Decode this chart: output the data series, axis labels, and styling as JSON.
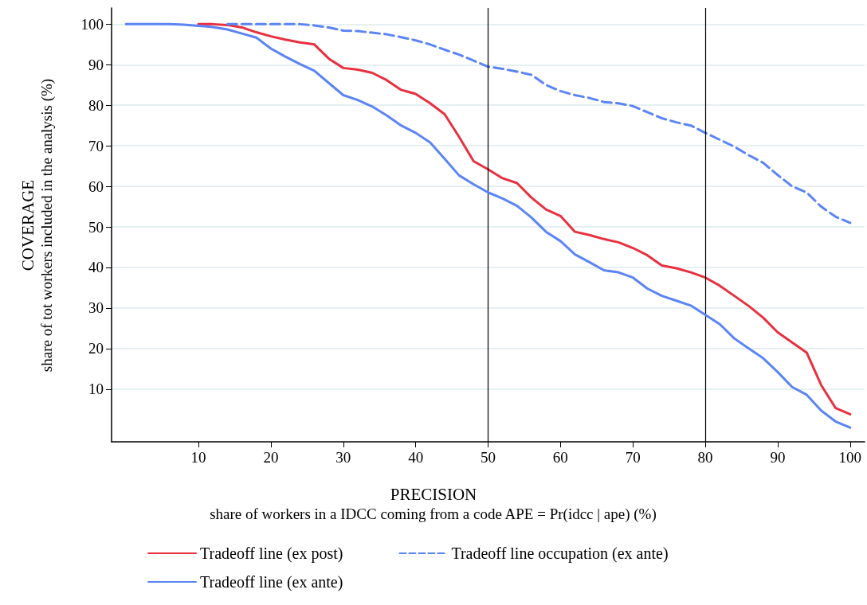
{
  "chart_data": {
    "type": "line",
    "xlabel": "PRECISION\nshare of workers in a IDCC coming from a code APE = Pr(idcc | ape) (%)",
    "ylabel": "COVERAGE\nshare of tot workers included in the analysis (%)",
    "x": [
      0,
      2,
      4,
      6,
      8,
      10,
      12,
      14,
      16,
      18,
      20,
      22,
      24,
      26,
      28,
      30,
      32,
      34,
      36,
      38,
      40,
      42,
      44,
      46,
      48,
      50,
      52,
      54,
      56,
      58,
      60,
      62,
      64,
      66,
      68,
      70,
      72,
      74,
      76,
      78,
      80,
      82,
      84,
      86,
      88,
      90,
      92,
      94,
      96,
      98,
      100
    ],
    "xlim": [
      -2,
      102
    ],
    "ylim": [
      -3,
      104
    ],
    "xticks": [
      10,
      20,
      30,
      40,
      50,
      60,
      70,
      80,
      90,
      100
    ],
    "yticks": [
      10,
      20,
      30,
      40,
      50,
      60,
      70,
      80,
      90,
      100
    ],
    "grid": "y",
    "legend": "bottom",
    "marker": "none",
    "ref_lines": [
      {
        "axis": "x",
        "value": 50,
        "color": "#000000"
      },
      {
        "axis": "x",
        "value": 80,
        "color": "#000000"
      }
    ],
    "series": [
      {
        "name": "Tradeoff line (ex post)",
        "color": "#e8303f",
        "line_style": "solid",
        "values": [
          null,
          null,
          null,
          null,
          null,
          100,
          100,
          99.8,
          99.2,
          98,
          97,
          96.2,
          95.5,
          95,
          91.5,
          89.2,
          88.8,
          88,
          86.2,
          83.8,
          82.8,
          80.5,
          77.8,
          72.2,
          66.2,
          64.2,
          62,
          60.8,
          57.2,
          54.3,
          52.7,
          48.8,
          48,
          47,
          46.2,
          44.8,
          43,
          40.5,
          39.8,
          38.8,
          37.5,
          35.5,
          33,
          30.5,
          27.6,
          24,
          21.5,
          19,
          11,
          5.3,
          3.8
        ]
      },
      {
        "name": "Tradeoff line occupation (ex ante)",
        "color": "#5b84f5",
        "line_style": "dashed",
        "values": [
          null,
          null,
          null,
          null,
          null,
          null,
          null,
          100,
          100,
          100,
          100,
          100,
          100,
          99.7,
          99.2,
          98.4,
          98.3,
          97.9,
          97.5,
          96.8,
          96,
          95,
          93.7,
          92.5,
          91,
          89.5,
          89,
          88.3,
          87.5,
          85,
          83.5,
          82.5,
          81.8,
          80.8,
          80.5,
          79.8,
          78.3,
          76.8,
          75.8,
          75,
          73.2,
          71.5,
          69.8,
          67.7,
          65.8,
          62.8,
          60,
          58.5,
          55,
          52.5,
          51
        ]
      },
      {
        "name": "Tradeoff line (ex ante)",
        "color": "#5b84f5",
        "line_style": "solid",
        "values": [
          100,
          100,
          100,
          100,
          99.9,
          99.6,
          99.3,
          98.7,
          97.7,
          96.7,
          94,
          92,
          90.2,
          88.5,
          85.5,
          82.5,
          81.3,
          79.7,
          77.5,
          75,
          73.2,
          70.8,
          66.8,
          62.7,
          60.5,
          58.5,
          57,
          55.2,
          52.3,
          48.8,
          46.5,
          43.2,
          41.3,
          39.3,
          38.8,
          37.5,
          34.8,
          33,
          31.8,
          30.6,
          28.3,
          26,
          22.5,
          20,
          17.6,
          14.2,
          10.5,
          8.6,
          4.7,
          2,
          0.5
        ]
      }
    ]
  }
}
